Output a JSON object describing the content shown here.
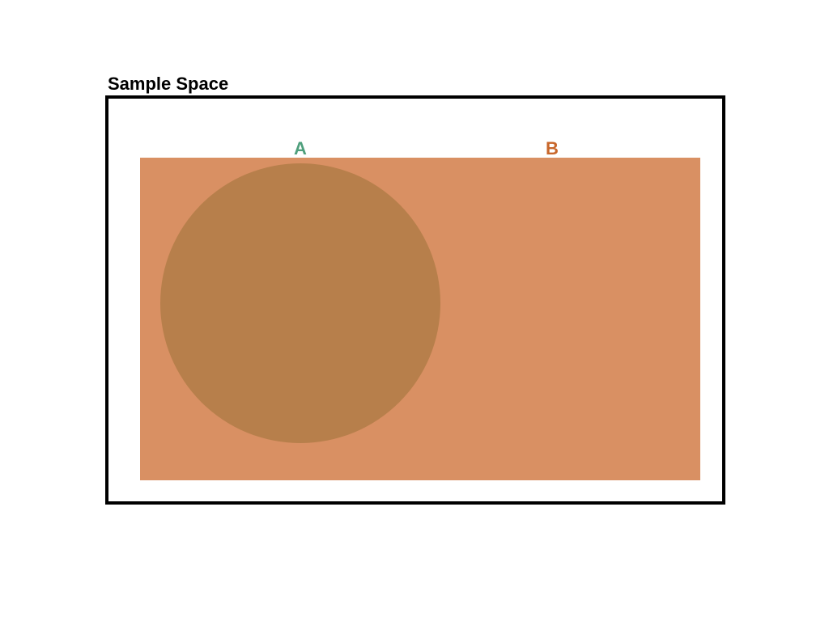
{
  "sample_space": {
    "title": "Sample Space"
  },
  "events": {
    "a": {
      "label": "A",
      "label_color": "#4e9f7c",
      "fill_color": "#b77f4b"
    },
    "b": {
      "label": "B",
      "label_color": "#c8672b",
      "fill_color": "#d99063"
    }
  }
}
